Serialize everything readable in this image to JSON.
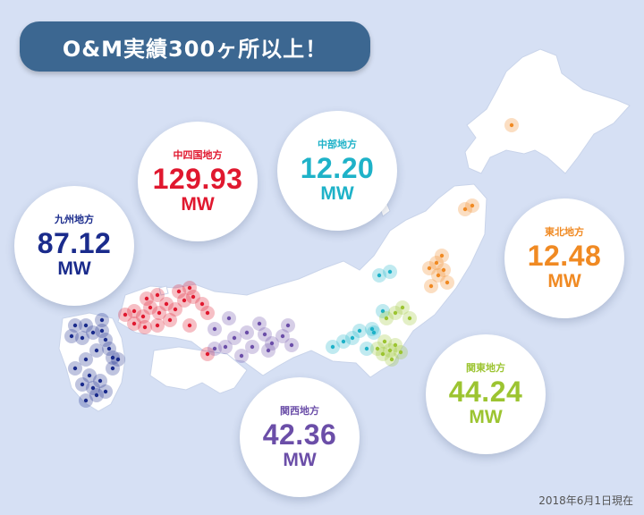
{
  "title": "O&M実績300ヶ所以上！",
  "date_note": "2018年6月1日現在",
  "regions": [
    {
      "id": "chushikoku",
      "name": "中四国地方",
      "value": "129.93",
      "unit": "MW",
      "color": "#e0182f"
    },
    {
      "id": "chubu",
      "name": "中部地方",
      "value": "12.20",
      "unit": "MW",
      "color": "#1eb2c8"
    },
    {
      "id": "kyushu",
      "name": "九州地方",
      "value": "87.12",
      "unit": "MW",
      "color": "#1a2b8c"
    },
    {
      "id": "tohoku",
      "name": "東北地方",
      "value": "12.48",
      "unit": "MW",
      "color": "#f08a23"
    },
    {
      "id": "kanto",
      "name": "関東地方",
      "value": "44.24",
      "unit": "MW",
      "color": "#9cc431"
    },
    {
      "id": "kansai",
      "name": "関西地方",
      "value": "42.36",
      "unit": "MW",
      "color": "#6b4ea8"
    }
  ],
  "colors": {
    "sea": "#d6e0f4",
    "land": "#ffffff",
    "banner": "#3c6791"
  }
}
